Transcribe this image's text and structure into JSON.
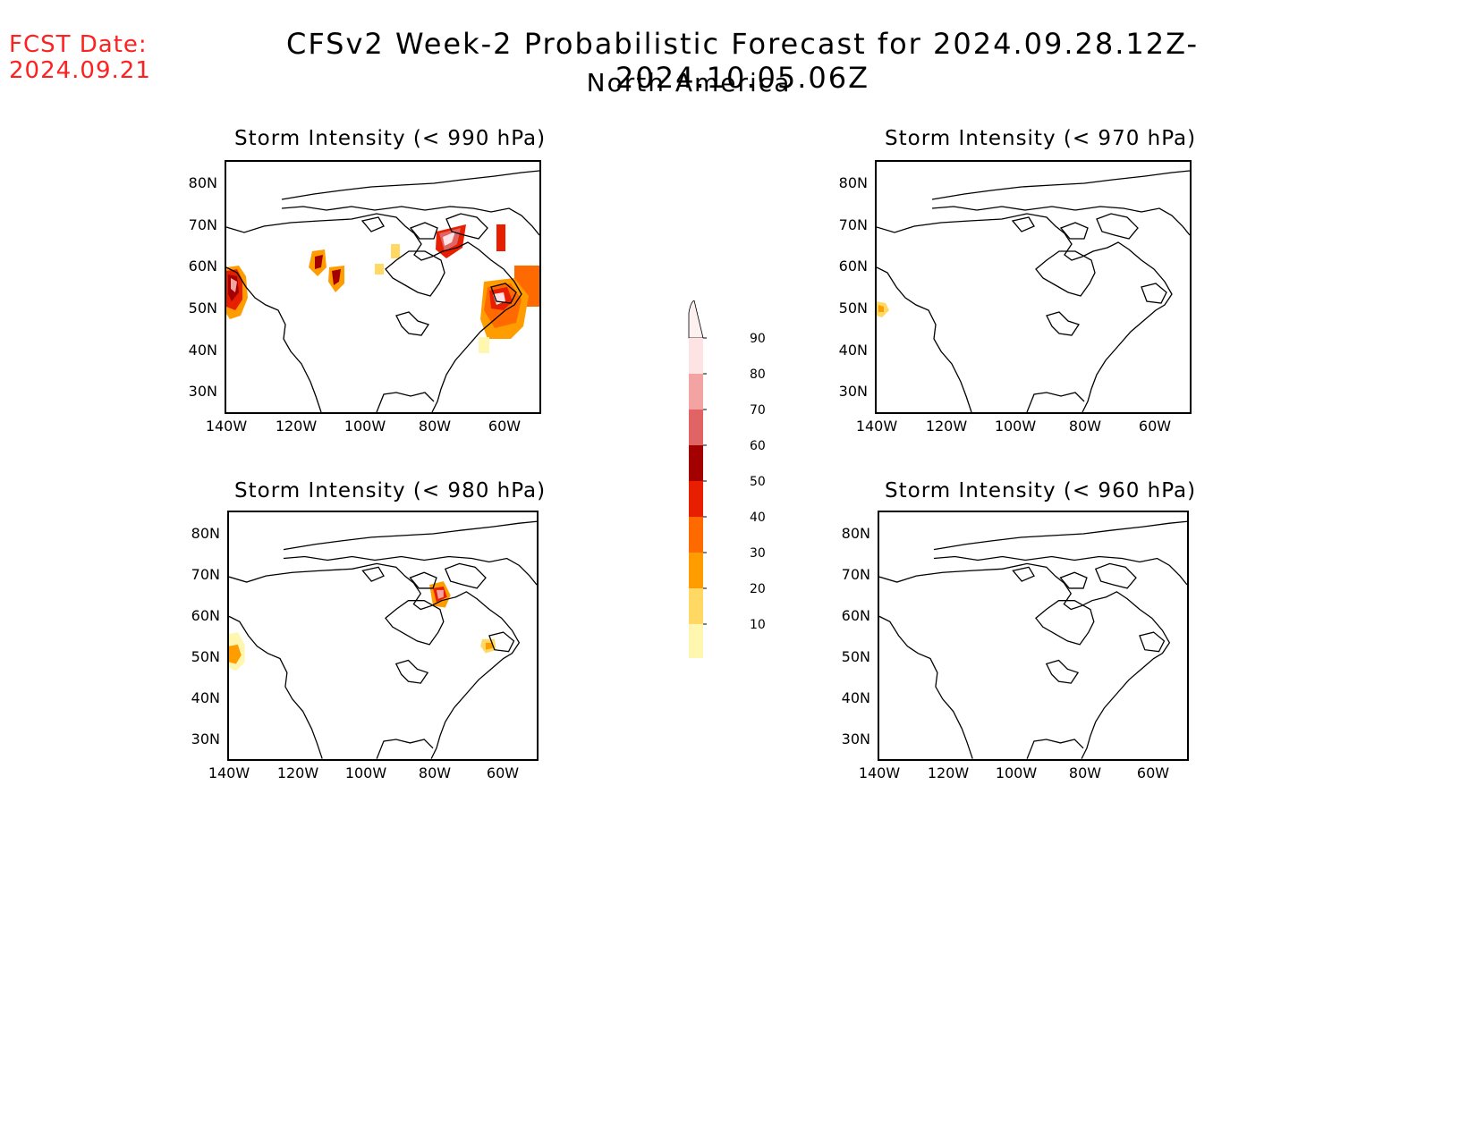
{
  "header": {
    "fcst_label": "FCST Date:",
    "fcst_date": "2024.09.21",
    "title": "CFSv2 Week-2 Probabilistic Forecast for 2024.09.28.12Z-2024.10.05.06Z",
    "subtitle": "North America"
  },
  "panels": [
    {
      "title": "Storm Intensity (< 990 hPa)"
    },
    {
      "title": "Storm Intensity (< 970 hPa)"
    },
    {
      "title": "Storm Intensity (< 980 hPa)"
    },
    {
      "title": "Storm Intensity (< 960 hPa)"
    }
  ],
  "axes": {
    "lat_labels": [
      "80N",
      "70N",
      "60N",
      "50N",
      "40N",
      "30N"
    ],
    "lon_labels": [
      "140W",
      "120W",
      "100W",
      "80W",
      "60W"
    ]
  },
  "colorbar": {
    "labels": [
      "90",
      "80",
      "70",
      "60",
      "50",
      "40",
      "30",
      "20",
      "10"
    ],
    "colors": [
      "#fde3e3",
      "#f4a3a3",
      "#e06464",
      "#a30000",
      "#e81e00",
      "#ff6a00",
      "#ff9c00",
      "#ffd964",
      "#fff6b0"
    ]
  }
}
